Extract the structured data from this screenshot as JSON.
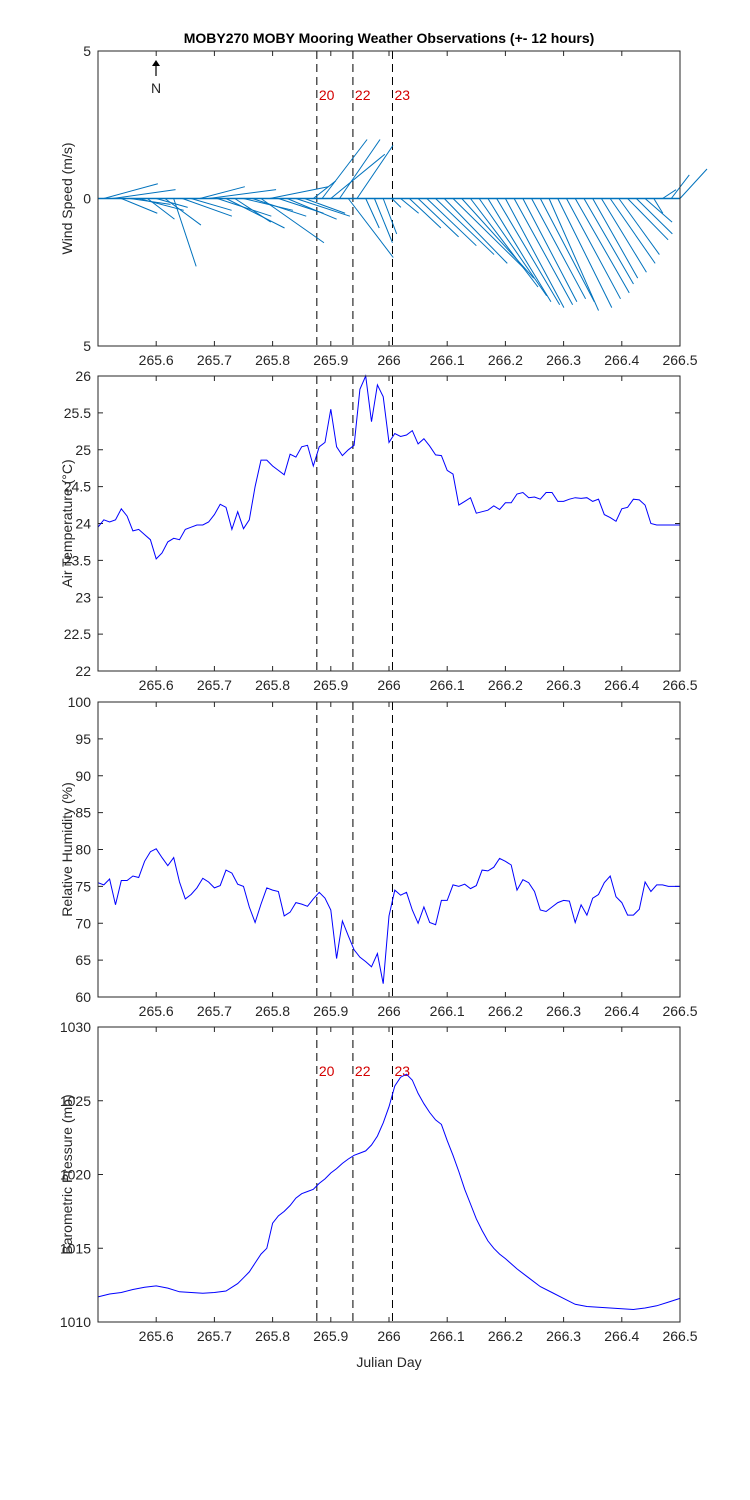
{
  "title": "MOBY270 MOBY Mooring Weather Observations (+- 12 hours)",
  "xlabel": "Julian Day",
  "north_label": "N",
  "xticks": [
    "265.6",
    "265.7",
    "265.8",
    "265.9",
    "266",
    "266.1",
    "266.2",
    "266.3",
    "266.4",
    "266.5"
  ],
  "events": [
    {
      "label": "20",
      "x": 265.876
    },
    {
      "label": "22",
      "x": 265.938
    },
    {
      "label": "23",
      "x": 266.006
    }
  ],
  "colors": {
    "line": "#0000ff",
    "wind": "#0072bd",
    "marker": "#d40000",
    "axes": "#262626"
  },
  "chart_data": [
    {
      "type": "quiver",
      "ylabel": "Wind Speed (m/s)",
      "yticks": [
        "5",
        "0",
        "5"
      ],
      "ylim": [
        -5,
        5
      ],
      "xlim": [
        265.5,
        266.5
      ],
      "x": [
        265.51,
        265.525,
        265.54,
        265.555,
        265.57,
        265.585,
        265.6,
        265.615,
        265.63,
        265.645,
        265.66,
        265.675,
        265.69,
        265.705,
        265.72,
        265.735,
        265.75,
        265.765,
        265.78,
        265.795,
        265.81,
        265.825,
        265.84,
        265.855,
        265.87,
        265.885,
        265.9,
        265.915,
        265.93,
        265.945,
        265.96,
        265.975,
        265.99,
        266.005,
        266.02,
        266.035,
        266.05,
        266.065,
        266.08,
        266.095,
        266.11,
        266.125,
        266.14,
        266.155,
        266.17,
        266.185,
        266.2,
        266.215,
        266.23,
        266.245,
        266.26,
        266.275,
        266.29,
        266.305,
        266.32,
        266.335,
        266.35,
        266.365,
        266.38,
        266.395,
        266.41,
        266.425,
        266.44,
        266.455,
        266.47,
        266.485,
        266.5
      ],
      "u": [
        1.2,
        1.4,
        0.8,
        0.9,
        1.0,
        0.6,
        0.7,
        0.8,
        0.5,
        1.1,
        0.9,
        1.0,
        1.5,
        1.2,
        1.3,
        0.8,
        1.1,
        1.2,
        1.4,
        1.3,
        1.0,
        1.1,
        1.2,
        0.9,
        0.5,
        1.0,
        1.2,
        0.9,
        1.0,
        0.8,
        0.3,
        0.4,
        0.3,
        0.2,
        0.4,
        0.7,
        0.9,
        1.1,
        1.3,
        1.4,
        1.6,
        1.6,
        1.5,
        1.5,
        1.4,
        1.4,
        1.3,
        1.3,
        1.2,
        1.2,
        1.2,
        1.1,
        1.2,
        1.2,
        1.2,
        1.1,
        1.0,
        1.0,
        1.0,
        0.9,
        0.9,
        0.8,
        0.6,
        0.2,
        0.3,
        0.4,
        0.6
      ],
      "v": [
        0.5,
        0.3,
        -0.5,
        -0.2,
        -0.4,
        -0.7,
        -0.3,
        -0.9,
        -2.3,
        -0.6,
        -0.4,
        0.4,
        0.3,
        -0.6,
        -1.0,
        -0.8,
        -0.4,
        -0.6,
        -1.5,
        0.4,
        -0.5,
        -0.7,
        -0.6,
        -0.5,
        0.6,
        2.0,
        1.5,
        2.0,
        -2.0,
        1.8,
        -1.0,
        -1.5,
        -1.2,
        -0.3,
        -0.5,
        -1.0,
        -1.3,
        -1.6,
        -1.9,
        -2.2,
        -2.4,
        -2.7,
        -3.0,
        -3.3,
        -3.5,
        -3.6,
        -3.7,
        -3.6,
        -3.5,
        -3.4,
        -3.5,
        -3.8,
        -3.7,
        -3.4,
        -3.2,
        -2.9,
        -2.7,
        -2.5,
        -2.2,
        -1.9,
        -1.4,
        -1.2,
        -0.8,
        -0.5,
        0.3,
        0.8,
        1.0
      ]
    },
    {
      "type": "line",
      "ylabel": "Air Temperature (°C)",
      "yticks": [
        "26",
        "25.5",
        "25",
        "24.5",
        "24",
        "23.5",
        "23",
        "22.5",
        "22"
      ],
      "ylim": [
        22,
        26
      ],
      "xlim": [
        265.5,
        266.5
      ],
      "x": [
        265.5,
        265.51,
        265.52,
        265.53,
        265.54,
        265.55,
        265.56,
        265.57,
        265.58,
        265.59,
        265.6,
        265.61,
        265.62,
        265.63,
        265.64,
        265.65,
        265.66,
        265.67,
        265.68,
        265.69,
        265.7,
        265.71,
        265.72,
        265.73,
        265.74,
        265.75,
        265.76,
        265.77,
        265.78,
        265.79,
        265.8,
        265.81,
        265.82,
        265.83,
        265.84,
        265.85,
        265.86,
        265.87,
        265.88,
        265.89,
        265.9,
        265.91,
        265.92,
        265.93,
        265.94,
        265.95,
        265.96,
        265.97,
        265.98,
        265.99,
        266.0,
        266.01,
        266.02,
        266.03,
        266.04,
        266.05,
        266.06,
        266.07,
        266.08,
        266.09,
        266.1,
        266.11,
        266.12,
        266.13,
        266.14,
        266.15,
        266.16,
        266.17,
        266.18,
        266.19,
        266.2,
        266.21,
        266.22,
        266.23,
        266.24,
        266.25,
        266.26,
        266.27,
        266.28,
        266.29,
        266.3,
        266.31,
        266.32,
        266.33,
        266.34,
        266.35,
        266.36,
        266.37,
        266.38,
        266.39,
        266.4,
        266.41,
        266.42,
        266.43,
        266.44,
        266.45,
        266.46,
        266.47,
        266.48,
        266.49,
        266.5
      ],
      "y": [
        23.95,
        24.05,
        24.02,
        24.05,
        24.2,
        24.1,
        23.9,
        23.92,
        23.85,
        23.78,
        23.52,
        23.6,
        23.75,
        23.8,
        23.78,
        23.92,
        23.95,
        23.98,
        23.98,
        24.02,
        24.12,
        24.26,
        24.22,
        23.92,
        24.16,
        23.93,
        24.05,
        24.5,
        24.86,
        24.86,
        24.78,
        24.72,
        24.66,
        24.94,
        24.9,
        25.04,
        25.06,
        24.78,
        25.04,
        25.1,
        25.55,
        25.04,
        24.92,
        25.0,
        25.06,
        25.82,
        26.02,
        25.38,
        25.88,
        25.72,
        25.1,
        25.22,
        25.18,
        25.2,
        25.26,
        25.08,
        25.15,
        25.05,
        24.93,
        24.92,
        24.72,
        24.67,
        24.25,
        24.3,
        24.35,
        24.14,
        24.16,
        24.18,
        24.24,
        24.19,
        24.28,
        24.28,
        24.4,
        24.42,
        24.35,
        24.36,
        24.33,
        24.42,
        24.42,
        24.3,
        24.3,
        24.33,
        24.35,
        24.34,
        24.35,
        24.3,
        24.33,
        24.12,
        24.08,
        24.03,
        24.2,
        24.22,
        24.33,
        24.32,
        24.25,
        24.0,
        23.98,
        23.98,
        23.98,
        23.98,
        23.98
      ]
    },
    {
      "type": "line",
      "ylabel": "Relative Humidity (%)",
      "yticks": [
        "100",
        "95",
        "90",
        "85",
        "80",
        "75",
        "70",
        "65",
        "60"
      ],
      "ylim": [
        60,
        100
      ],
      "xlim": [
        265.5,
        266.5
      ],
      "x": [
        265.5,
        265.51,
        265.52,
        265.53,
        265.54,
        265.55,
        265.56,
        265.57,
        265.58,
        265.59,
        265.6,
        265.61,
        265.62,
        265.63,
        265.64,
        265.65,
        265.66,
        265.67,
        265.68,
        265.69,
        265.7,
        265.71,
        265.72,
        265.73,
        265.74,
        265.75,
        265.76,
        265.77,
        265.78,
        265.79,
        265.8,
        265.81,
        265.82,
        265.83,
        265.84,
        265.85,
        265.86,
        265.87,
        265.88,
        265.89,
        265.9,
        265.91,
        265.92,
        265.93,
        265.94,
        265.95,
        265.96,
        265.97,
        265.98,
        265.99,
        266.0,
        266.01,
        266.02,
        266.03,
        266.04,
        266.05,
        266.06,
        266.07,
        266.08,
        266.09,
        266.1,
        266.11,
        266.12,
        266.13,
        266.14,
        266.15,
        266.16,
        266.17,
        266.18,
        266.19,
        266.2,
        266.21,
        266.22,
        266.23,
        266.24,
        266.25,
        266.26,
        266.27,
        266.28,
        266.29,
        266.3,
        266.31,
        266.32,
        266.33,
        266.34,
        266.35,
        266.36,
        266.37,
        266.38,
        266.39,
        266.4,
        266.41,
        266.42,
        266.43,
        266.44,
        266.45,
        266.46,
        266.47,
        266.48,
        266.49,
        266.5
      ],
      "y": [
        75.5,
        75.2,
        76.0,
        72.5,
        75.8,
        75.8,
        76.4,
        76.2,
        78.4,
        79.7,
        80.1,
        78.9,
        77.8,
        78.9,
        75.6,
        73.3,
        73.9,
        74.8,
        76.1,
        75.6,
        74.8,
        75.1,
        77.2,
        76.8,
        75.3,
        75.0,
        72.2,
        70.1,
        72.6,
        74.8,
        74.5,
        74.3,
        71.0,
        71.5,
        72.8,
        72.6,
        72.3,
        73.3,
        74.2,
        73.4,
        71.8,
        65.2,
        70.3,
        68.3,
        66.4,
        65.4,
        64.8,
        64.1,
        65.9,
        61.8,
        71.0,
        74.5,
        73.8,
        74.2,
        71.8,
        70.0,
        72.2,
        70.1,
        69.8,
        73.1,
        73.1,
        75.2,
        75.0,
        75.3,
        74.7,
        75.1,
        77.2,
        77.1,
        77.6,
        78.8,
        78.4,
        77.9,
        74.5,
        75.9,
        75.5,
        74.3,
        71.8,
        71.6,
        72.2,
        72.8,
        73.1,
        73.0,
        70.1,
        72.5,
        71.1,
        73.4,
        73.9,
        75.5,
        76.4,
        73.6,
        72.8,
        71.1,
        71.1,
        71.9,
        75.6,
        74.3,
        75.2,
        75.2,
        75.0,
        75.0,
        75.0
      ]
    },
    {
      "type": "line",
      "ylabel": "Barometric Pressure (mb)",
      "yticks": [
        "1030",
        "1025",
        "1020",
        "1015",
        "1010"
      ],
      "ylim": [
        1010,
        1030
      ],
      "xlim": [
        265.5,
        266.5
      ],
      "x": [
        265.5,
        265.52,
        265.54,
        265.56,
        265.58,
        265.6,
        265.62,
        265.64,
        265.66,
        265.68,
        265.7,
        265.72,
        265.74,
        265.75,
        265.76,
        265.77,
        265.78,
        265.79,
        265.8,
        265.81,
        265.82,
        265.83,
        265.84,
        265.85,
        265.86,
        265.87,
        265.88,
        265.89,
        265.9,
        265.91,
        265.92,
        265.93,
        265.94,
        265.95,
        265.96,
        265.97,
        265.98,
        265.99,
        266.0,
        266.01,
        266.02,
        266.03,
        266.04,
        266.05,
        266.06,
        266.07,
        266.08,
        266.09,
        266.1,
        266.11,
        266.12,
        266.13,
        266.14,
        266.15,
        266.16,
        266.17,
        266.18,
        266.19,
        266.2,
        266.22,
        266.24,
        266.26,
        266.28,
        266.3,
        266.32,
        266.34,
        266.36,
        266.38,
        266.4,
        266.42,
        266.44,
        266.46,
        266.48,
        266.5
      ],
      "y": [
        1011.7,
        1011.9,
        1012.0,
        1012.2,
        1012.35,
        1012.45,
        1012.3,
        1012.05,
        1012.0,
        1011.95,
        1012.0,
        1012.1,
        1012.6,
        1013.0,
        1013.4,
        1014.0,
        1014.6,
        1015.0,
        1016.7,
        1017.2,
        1017.5,
        1017.9,
        1018.4,
        1018.7,
        1018.85,
        1019.0,
        1019.4,
        1019.7,
        1020.1,
        1020.4,
        1020.75,
        1021.05,
        1021.3,
        1021.45,
        1021.6,
        1022.0,
        1022.6,
        1023.5,
        1024.6,
        1026.0,
        1026.6,
        1026.8,
        1026.4,
        1025.5,
        1024.8,
        1024.2,
        1023.7,
        1023.4,
        1022.3,
        1021.3,
        1020.2,
        1019.0,
        1018.0,
        1017.0,
        1016.2,
        1015.5,
        1015.0,
        1014.6,
        1014.3,
        1013.6,
        1013.0,
        1012.4,
        1012.0,
        1011.6,
        1011.2,
        1011.05,
        1011.0,
        1010.95,
        1010.9,
        1010.85,
        1010.95,
        1011.1,
        1011.35,
        1011.6
      ]
    }
  ]
}
